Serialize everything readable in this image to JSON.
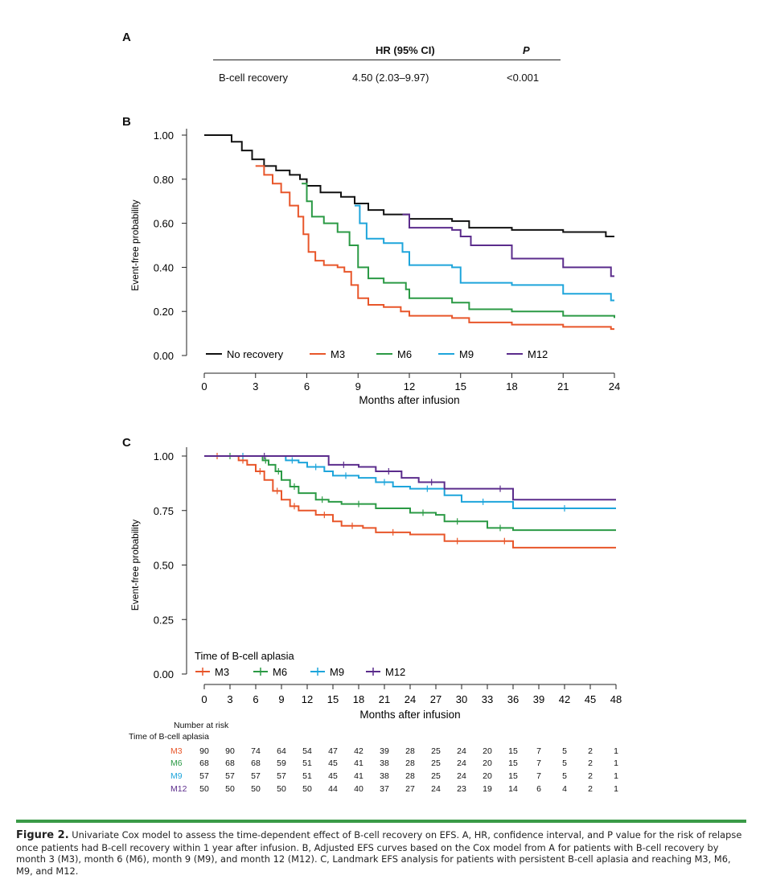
{
  "panel_a": {
    "letter": "A",
    "headers": {
      "hr": "HR (95% CI)",
      "p": "P"
    },
    "row": {
      "label": "B-cell recovery",
      "hr": "4.50 (2.03–9.97)",
      "p": "<0.001"
    }
  },
  "chart_data": [
    {
      "type": "line",
      "panel": "B",
      "title": "",
      "xlabel": "Months after infusion",
      "ylabel": "Event-free probability",
      "xlim": [
        0,
        24
      ],
      "ylim": [
        0,
        1
      ],
      "x_ticks": [
        "0",
        "3",
        "6",
        "9",
        "12",
        "15",
        "18",
        "21",
        "24"
      ],
      "y_ticks": [
        "0.00",
        "0.20",
        "0.40",
        "0.60",
        "0.80",
        "1.00"
      ],
      "legend_position": "bottom",
      "series": [
        {
          "name": "No recovery",
          "color": "#111111",
          "points": [
            [
              0,
              1.0
            ],
            [
              1.0,
              1.0
            ],
            [
              1.6,
              0.97
            ],
            [
              2.2,
              0.93
            ],
            [
              2.8,
              0.89
            ],
            [
              3.5,
              0.86
            ],
            [
              4.2,
              0.84
            ],
            [
              5.0,
              0.82
            ],
            [
              5.6,
              0.8
            ],
            [
              6.0,
              0.77
            ],
            [
              6.8,
              0.74
            ],
            [
              8.0,
              0.72
            ],
            [
              8.8,
              0.69
            ],
            [
              9.6,
              0.66
            ],
            [
              10.5,
              0.64
            ],
            [
              12.0,
              0.62
            ],
            [
              14.5,
              0.61
            ],
            [
              15.5,
              0.58
            ],
            [
              18.0,
              0.57
            ],
            [
              21.0,
              0.56
            ],
            [
              23.5,
              0.54
            ],
            [
              24.0,
              0.54
            ]
          ]
        },
        {
          "name": "M3",
          "color": "#e8562a",
          "points": [
            [
              3.0,
              0.86
            ],
            [
              3.5,
              0.82
            ],
            [
              4.0,
              0.78
            ],
            [
              4.5,
              0.74
            ],
            [
              5.0,
              0.68
            ],
            [
              5.5,
              0.63
            ],
            [
              5.8,
              0.55
            ],
            [
              6.1,
              0.47
            ],
            [
              6.5,
              0.43
            ],
            [
              7.0,
              0.41
            ],
            [
              7.8,
              0.4
            ],
            [
              8.2,
              0.38
            ],
            [
              8.6,
              0.32
            ],
            [
              9.0,
              0.26
            ],
            [
              9.6,
              0.23
            ],
            [
              10.5,
              0.22
            ],
            [
              11.5,
              0.2
            ],
            [
              12.0,
              0.18
            ],
            [
              14.5,
              0.17
            ],
            [
              15.5,
              0.15
            ],
            [
              18.0,
              0.14
            ],
            [
              21.0,
              0.13
            ],
            [
              23.8,
              0.12
            ],
            [
              24.0,
              0.12
            ]
          ]
        },
        {
          "name": "M6",
          "color": "#2b9a45",
          "points": [
            [
              5.7,
              0.78
            ],
            [
              6.0,
              0.7
            ],
            [
              6.3,
              0.63
            ],
            [
              7.0,
              0.6
            ],
            [
              7.8,
              0.56
            ],
            [
              8.5,
              0.5
            ],
            [
              9.0,
              0.4
            ],
            [
              9.6,
              0.35
            ],
            [
              10.5,
              0.33
            ],
            [
              11.8,
              0.3
            ],
            [
              12.0,
              0.26
            ],
            [
              14.5,
              0.24
            ],
            [
              15.5,
              0.21
            ],
            [
              18.0,
              0.2
            ],
            [
              21.0,
              0.18
            ],
            [
              24.0,
              0.17
            ]
          ]
        },
        {
          "name": "M9",
          "color": "#1ea5db",
          "points": [
            [
              8.8,
              0.68
            ],
            [
              9.1,
              0.6
            ],
            [
              9.5,
              0.53
            ],
            [
              10.5,
              0.51
            ],
            [
              11.6,
              0.47
            ],
            [
              12.0,
              0.41
            ],
            [
              14.5,
              0.4
            ],
            [
              15.0,
              0.33
            ],
            [
              18.0,
              0.32
            ],
            [
              21.0,
              0.28
            ],
            [
              23.8,
              0.25
            ],
            [
              24.0,
              0.25
            ]
          ]
        },
        {
          "name": "M12",
          "color": "#5b2c8c",
          "points": [
            [
              11.6,
              0.64
            ],
            [
              12.0,
              0.58
            ],
            [
              14.5,
              0.57
            ],
            [
              15.0,
              0.54
            ],
            [
              15.6,
              0.5
            ],
            [
              18.0,
              0.44
            ],
            [
              21.0,
              0.4
            ],
            [
              23.8,
              0.36
            ],
            [
              24.0,
              0.36
            ]
          ]
        }
      ]
    },
    {
      "type": "line",
      "panel": "C",
      "title": "",
      "xlabel": "Months after infusion",
      "ylabel": "Event-free probability",
      "xlim": [
        0,
        48
      ],
      "ylim": [
        0,
        1
      ],
      "x_ticks": [
        "0",
        "3",
        "6",
        "9",
        "12",
        "15",
        "18",
        "21",
        "24",
        "27",
        "30",
        "33",
        "36",
        "39",
        "42",
        "45",
        "48"
      ],
      "y_ticks": [
        "0.00",
        "0.25",
        "0.50",
        "0.75",
        "1.00"
      ],
      "legend_title": "Time of B-cell aplasia",
      "legend_position": "bottom-left",
      "series": [
        {
          "name": "M3",
          "color": "#e8562a",
          "points": [
            [
              0,
              1.0
            ],
            [
              3,
              1.0
            ],
            [
              4,
              0.98
            ],
            [
              5,
              0.96
            ],
            [
              6,
              0.93
            ],
            [
              7,
              0.89
            ],
            [
              8,
              0.84
            ],
            [
              9,
              0.8
            ],
            [
              10,
              0.77
            ],
            [
              11,
              0.75
            ],
            [
              13,
              0.73
            ],
            [
              15,
              0.7
            ],
            [
              16,
              0.68
            ],
            [
              18.5,
              0.67
            ],
            [
              20,
              0.65
            ],
            [
              24,
              0.64
            ],
            [
              28,
              0.61
            ],
            [
              31,
              0.61
            ],
            [
              34,
              0.61
            ],
            [
              36,
              0.58
            ],
            [
              48,
              0.58
            ]
          ]
        },
        {
          "name": "M6",
          "color": "#2b9a45",
          "points": [
            [
              0,
              1.0
            ],
            [
              6,
              1.0
            ],
            [
              6.8,
              0.98
            ],
            [
              7.5,
              0.96
            ],
            [
              8.3,
              0.93
            ],
            [
              9,
              0.89
            ],
            [
              10,
              0.86
            ],
            [
              11,
              0.83
            ],
            [
              13,
              0.8
            ],
            [
              14.5,
              0.79
            ],
            [
              16,
              0.78
            ],
            [
              20,
              0.76
            ],
            [
              24,
              0.74
            ],
            [
              27,
              0.73
            ],
            [
              28,
              0.7
            ],
            [
              31,
              0.7
            ],
            [
              33,
              0.67
            ],
            [
              36,
              0.66
            ],
            [
              48,
              0.66
            ]
          ]
        },
        {
          "name": "M9",
          "color": "#1ea5db",
          "points": [
            [
              0,
              1.0
            ],
            [
              9,
              1.0
            ],
            [
              9.5,
              0.98
            ],
            [
              11,
              0.97
            ],
            [
              12,
              0.95
            ],
            [
              14,
              0.93
            ],
            [
              15,
              0.91
            ],
            [
              18,
              0.9
            ],
            [
              20,
              0.88
            ],
            [
              22,
              0.86
            ],
            [
              24,
              0.85
            ],
            [
              28,
              0.82
            ],
            [
              30,
              0.79
            ],
            [
              35,
              0.79
            ],
            [
              36,
              0.76
            ],
            [
              48,
              0.76
            ]
          ]
        },
        {
          "name": "M12",
          "color": "#5b2c8c",
          "points": [
            [
              0,
              1.0
            ],
            [
              14,
              1.0
            ],
            [
              14.5,
              0.96
            ],
            [
              18,
              0.95
            ],
            [
              20,
              0.93
            ],
            [
              23,
              0.9
            ],
            [
              25,
              0.88
            ],
            [
              28,
              0.85
            ],
            [
              33,
              0.85
            ],
            [
              36,
              0.8
            ],
            [
              48,
              0.8
            ]
          ]
        }
      ]
    }
  ],
  "panel_b": {
    "letter": "B"
  },
  "panel_c": {
    "letter": "C",
    "risk_table": {
      "title": "Number at risk",
      "group_label": "Time of B-cell aplasia",
      "rows": [
        {
          "label": "M3",
          "color": "#e8562a",
          "values": [
            "90",
            "90",
            "74",
            "64",
            "54",
            "47",
            "42",
            "39",
            "28",
            "25",
            "24",
            "20",
            "15",
            "7",
            "5",
            "2",
            "1"
          ]
        },
        {
          "label": "M6",
          "color": "#2b9a45",
          "values": [
            "68",
            "68",
            "68",
            "59",
            "51",
            "45",
            "41",
            "38",
            "28",
            "25",
            "24",
            "20",
            "15",
            "7",
            "5",
            "2",
            "1"
          ]
        },
        {
          "label": "M9",
          "color": "#1ea5db",
          "values": [
            "57",
            "57",
            "57",
            "57",
            "51",
            "45",
            "41",
            "38",
            "28",
            "25",
            "24",
            "20",
            "15",
            "7",
            "5",
            "2",
            "1"
          ]
        },
        {
          "label": "M12",
          "color": "#5b2c8c",
          "values": [
            "50",
            "50",
            "50",
            "50",
            "50",
            "44",
            "40",
            "37",
            "27",
            "24",
            "23",
            "19",
            "14",
            "6",
            "4",
            "2",
            "1"
          ]
        }
      ]
    }
  },
  "caption": {
    "label": "Figure 2.",
    "text": "Univariate Cox model to assess the time-dependent effect of B-cell recovery on EFS. A, HR, confidence interval, and P value for the risk of relapse once patients had B-cell recovery within 1 year after infusion. B, Adjusted EFS curves based on the Cox model from A for patients with B-cell recovery by month 3 (M3), month 6 (M6), month 9 (M9), and month 12 (M12). C, Landmark EFS analysis for patients with persistent B-cell aplasia and reaching M3, M6, M9, and M12."
  }
}
